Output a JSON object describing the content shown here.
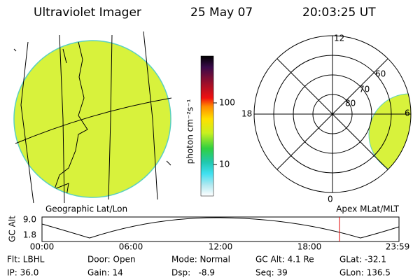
{
  "header": {
    "title": "Ultraviolet Imager",
    "date": "25 May 07",
    "time": "20:03:25 UT"
  },
  "colorbar": {
    "label": "photon cm⁻²s⁻¹",
    "ticks": [
      "100",
      "10"
    ]
  },
  "polar_plot": {
    "mlt_labels": [
      "12",
      "18",
      "6",
      "0"
    ],
    "lat_labels": [
      "60",
      "70",
      "80"
    ]
  },
  "orbit": {
    "left_label": "Geographic Lat/Lon",
    "right_label": "Apex MLat/MLT",
    "y_axis_label": "GC Alt",
    "y_ticks": [
      "9.0",
      "1.8"
    ],
    "x_ticks": [
      "00:00",
      "06:00",
      "12:00",
      "18:00",
      "23:59"
    ]
  },
  "footer": {
    "rows": [
      [
        "Flt: LBHL",
        "Door: Open",
        "Mode: Normal",
        "GC Alt: 4.1 Re",
        "GLat: -32.1"
      ],
      [
        "IP: 36.0",
        "Gain: 14",
        "Dsp:   -8.9",
        "Seq: 39",
        "GLon: 136.5"
      ]
    ]
  }
}
